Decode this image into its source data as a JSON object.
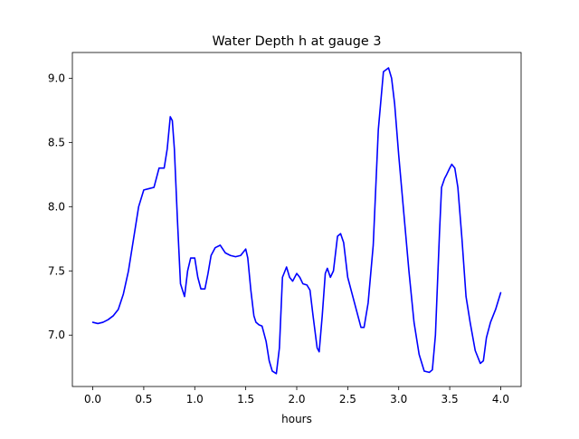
{
  "chart_data": {
    "type": "line",
    "title": "Water Depth h at gauge 3",
    "xlabel": "hours",
    "ylabel": "",
    "xlim": [
      -0.2,
      4.2
    ],
    "ylim": [
      6.6,
      9.2
    ],
    "xticks": [
      0.0,
      0.5,
      1.0,
      1.5,
      2.0,
      2.5,
      3.0,
      3.5,
      4.0
    ],
    "xtick_labels": [
      "0.0",
      "0.5",
      "1.0",
      "1.5",
      "2.0",
      "2.5",
      "3.0",
      "3.5",
      "4.0"
    ],
    "yticks": [
      7.0,
      7.5,
      8.0,
      8.5,
      9.0
    ],
    "ytick_labels": [
      "7.0",
      "7.5",
      "8.0",
      "8.5",
      "9.0"
    ],
    "grid": false,
    "series": [
      {
        "color": "#0000ff",
        "x": [
          0.0,
          0.05,
          0.1,
          0.15,
          0.2,
          0.25,
          0.3,
          0.35,
          0.4,
          0.45,
          0.5,
          0.55,
          0.6,
          0.65,
          0.7,
          0.73,
          0.76,
          0.78,
          0.8,
          0.83,
          0.86,
          0.9,
          0.93,
          0.96,
          1.0,
          1.03,
          1.06,
          1.1,
          1.13,
          1.16,
          1.2,
          1.25,
          1.3,
          1.35,
          1.4,
          1.45,
          1.5,
          1.52,
          1.55,
          1.58,
          1.6,
          1.63,
          1.66,
          1.7,
          1.73,
          1.76,
          1.8,
          1.83,
          1.86,
          1.9,
          1.93,
          1.96,
          2.0,
          2.03,
          2.06,
          2.1,
          2.13,
          2.16,
          2.2,
          2.22,
          2.25,
          2.28,
          2.3,
          2.33,
          2.36,
          2.4,
          2.43,
          2.46,
          2.5,
          2.55,
          2.6,
          2.63,
          2.66,
          2.7,
          2.75,
          2.8,
          2.85,
          2.9,
          2.93,
          2.96,
          3.0,
          3.05,
          3.1,
          3.15,
          3.2,
          3.25,
          3.3,
          3.33,
          3.36,
          3.4,
          3.42,
          3.45,
          3.47,
          3.5,
          3.52,
          3.55,
          3.58,
          3.62,
          3.66,
          3.7,
          3.75,
          3.8,
          3.83,
          3.86,
          3.9,
          3.95,
          4.0
        ],
        "y": [
          7.1,
          7.09,
          7.1,
          7.12,
          7.15,
          7.2,
          7.32,
          7.5,
          7.75,
          8.0,
          8.13,
          8.14,
          8.15,
          8.3,
          8.3,
          8.45,
          8.7,
          8.67,
          8.45,
          7.9,
          7.4,
          7.3,
          7.5,
          7.6,
          7.6,
          7.45,
          7.36,
          7.36,
          7.48,
          7.62,
          7.68,
          7.7,
          7.64,
          7.62,
          7.61,
          7.62,
          7.67,
          7.6,
          7.35,
          7.15,
          7.1,
          7.08,
          7.07,
          6.95,
          6.8,
          6.72,
          6.7,
          6.9,
          7.45,
          7.53,
          7.45,
          7.42,
          7.48,
          7.45,
          7.4,
          7.39,
          7.35,
          7.15,
          6.9,
          6.87,
          7.15,
          7.48,
          7.52,
          7.45,
          7.5,
          7.77,
          7.79,
          7.72,
          7.45,
          7.3,
          7.15,
          7.06,
          7.06,
          7.25,
          7.7,
          8.6,
          9.05,
          9.08,
          9.0,
          8.8,
          8.4,
          7.95,
          7.5,
          7.1,
          6.85,
          6.72,
          6.71,
          6.73,
          7.0,
          7.8,
          8.15,
          8.22,
          8.25,
          8.3,
          8.33,
          8.3,
          8.15,
          7.75,
          7.3,
          7.1,
          6.88,
          6.78,
          6.8,
          6.98,
          7.1,
          7.2,
          7.33
        ]
      }
    ]
  }
}
